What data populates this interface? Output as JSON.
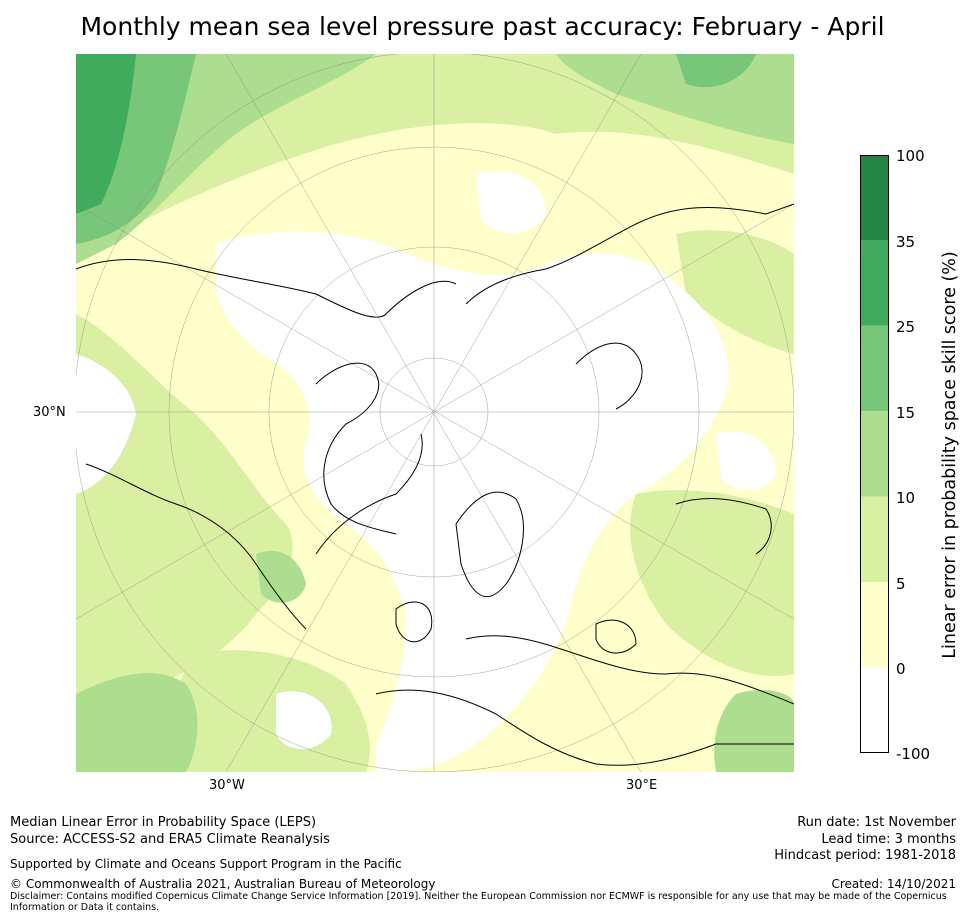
{
  "title": "Monthly mean sea level pressure past accuracy: February - April",
  "map": {
    "projection": "north-polar-stereographic",
    "lat_label": "30°N",
    "lon_labels": [
      "30°W",
      "30°E"
    ]
  },
  "colorbar": {
    "label": "Linear error in probability space skill score (%)",
    "ticks": [
      "100",
      "35",
      "25",
      "15",
      "10",
      "5",
      "0",
      "-100"
    ],
    "bands": [
      {
        "range": "-100 to 0",
        "color": "#ffffff"
      },
      {
        "range": "0 to 5",
        "color": "#ffffcc"
      },
      {
        "range": "5 to 10",
        "color": "#d9f0a3"
      },
      {
        "range": "10 to 15",
        "color": "#addd8e"
      },
      {
        "range": "15 to 25",
        "color": "#78c679"
      },
      {
        "range": "25 to 35",
        "color": "#41ab5d"
      },
      {
        "range": "35 to 100",
        "color": "#238443"
      }
    ]
  },
  "footer": {
    "left_line1": "Median Linear Error in Probability Space (LEPS)",
    "left_line2": "Source: ACCESS-S2 and ERA5 Climate Reanalysis",
    "support": "Supported by Climate and Oceans Support Program in the Pacific",
    "copyright": "© Commonwealth of Australia 2021, Australian Bureau of Meteorology",
    "disclaimer": "Disclaimer: Contains modified Copernicus Climate Change Service Information [2019]. Neither the European Commission nor ECMWF is responsible for any use that may be made of the Copernicus Information or Data it contains.",
    "run_date": "Run date: 1st November",
    "lead_time": "Lead time: 3 months",
    "hindcast": "Hindcast period: 1981-2018",
    "created": "Created: 14/10/2021"
  }
}
